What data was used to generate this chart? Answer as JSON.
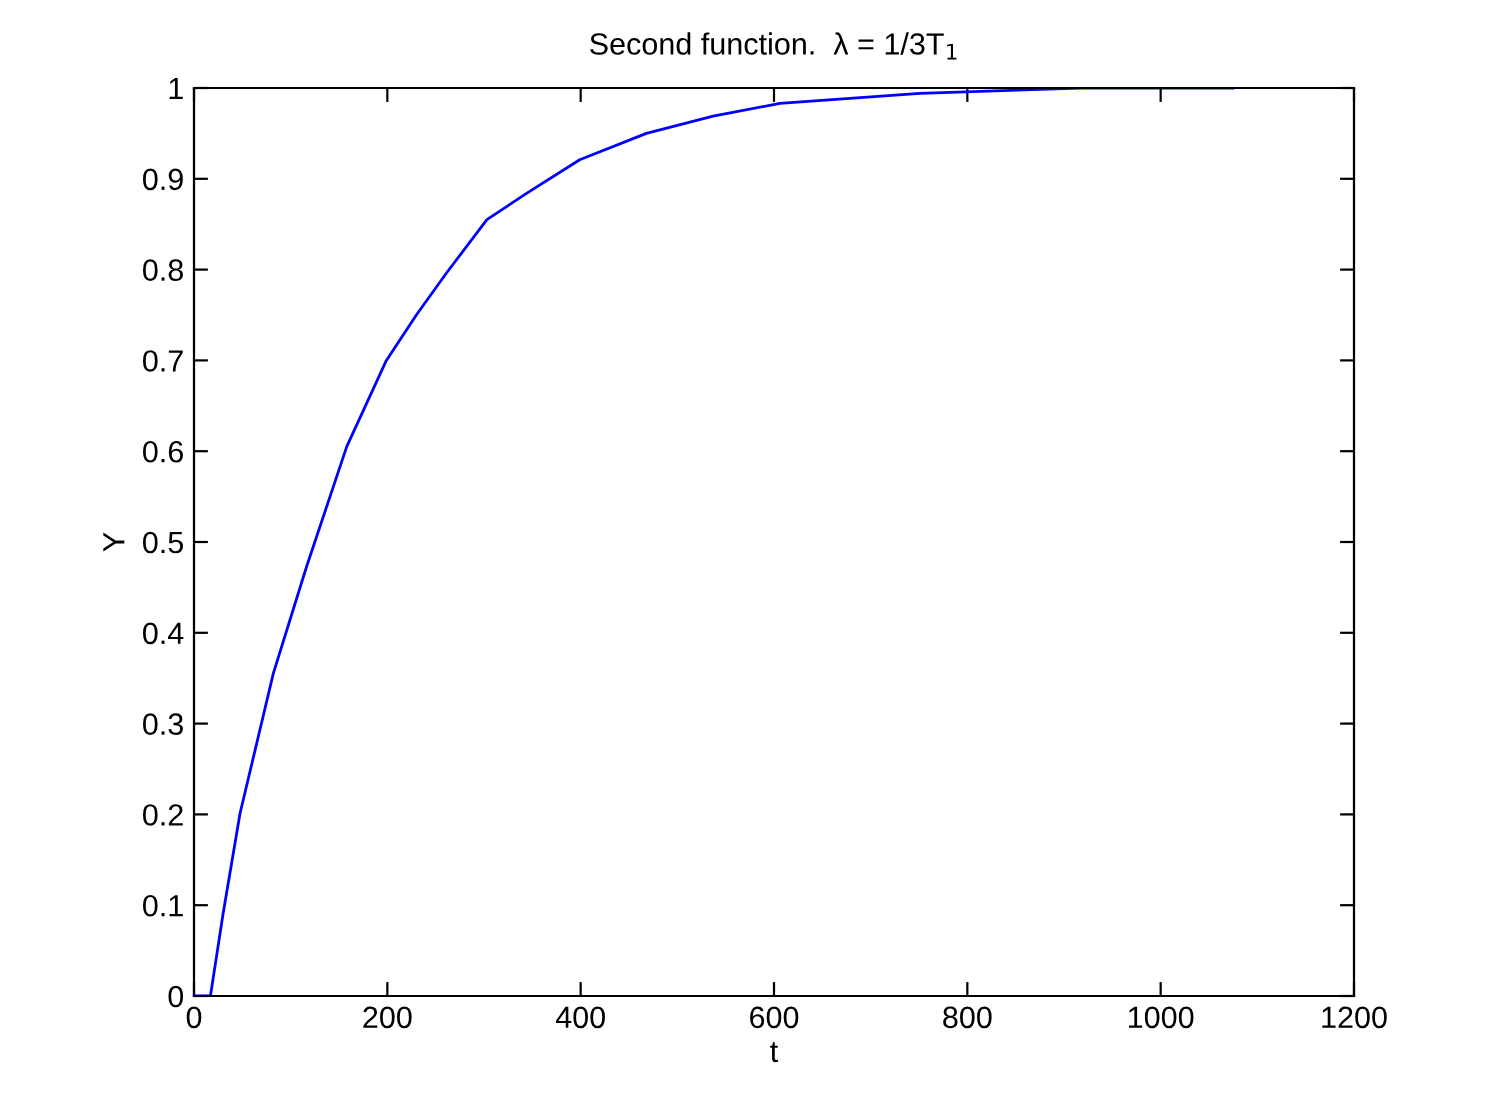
{
  "chart_data": {
    "type": "line",
    "title": "Second function.  λ = 1/3T$_{1}$",
    "xlabel": "t",
    "ylabel": "Y",
    "x": [
      0,
      17,
      30,
      47.6,
      82,
      116.5,
      158,
      199,
      230,
      261,
      303,
      344,
      399,
      468,
      537,
      606,
      751,
      917,
      1075
    ],
    "series": [
      {
        "color": "#0000ff",
        "values": [
          0,
          0,
          0.09,
          0.201,
          0.355,
          0.473,
          0.605,
          0.7,
          0.75,
          0.796,
          0.855,
          0.884,
          0.921,
          0.95,
          0.969,
          0.983,
          0.994,
          1.0,
          1.0
        ]
      }
    ],
    "xlim": [
      0,
      1200
    ],
    "xticks": [
      0,
      200,
      400,
      600,
      800,
      1000,
      1200
    ],
    "ylim": [
      0,
      1
    ],
    "yticks": [
      0,
      0.1,
      0.2,
      0.3,
      0.4,
      0.5,
      0.6,
      0.7,
      0.8,
      0.9,
      1
    ],
    "grid": false,
    "legend": false
  }
}
